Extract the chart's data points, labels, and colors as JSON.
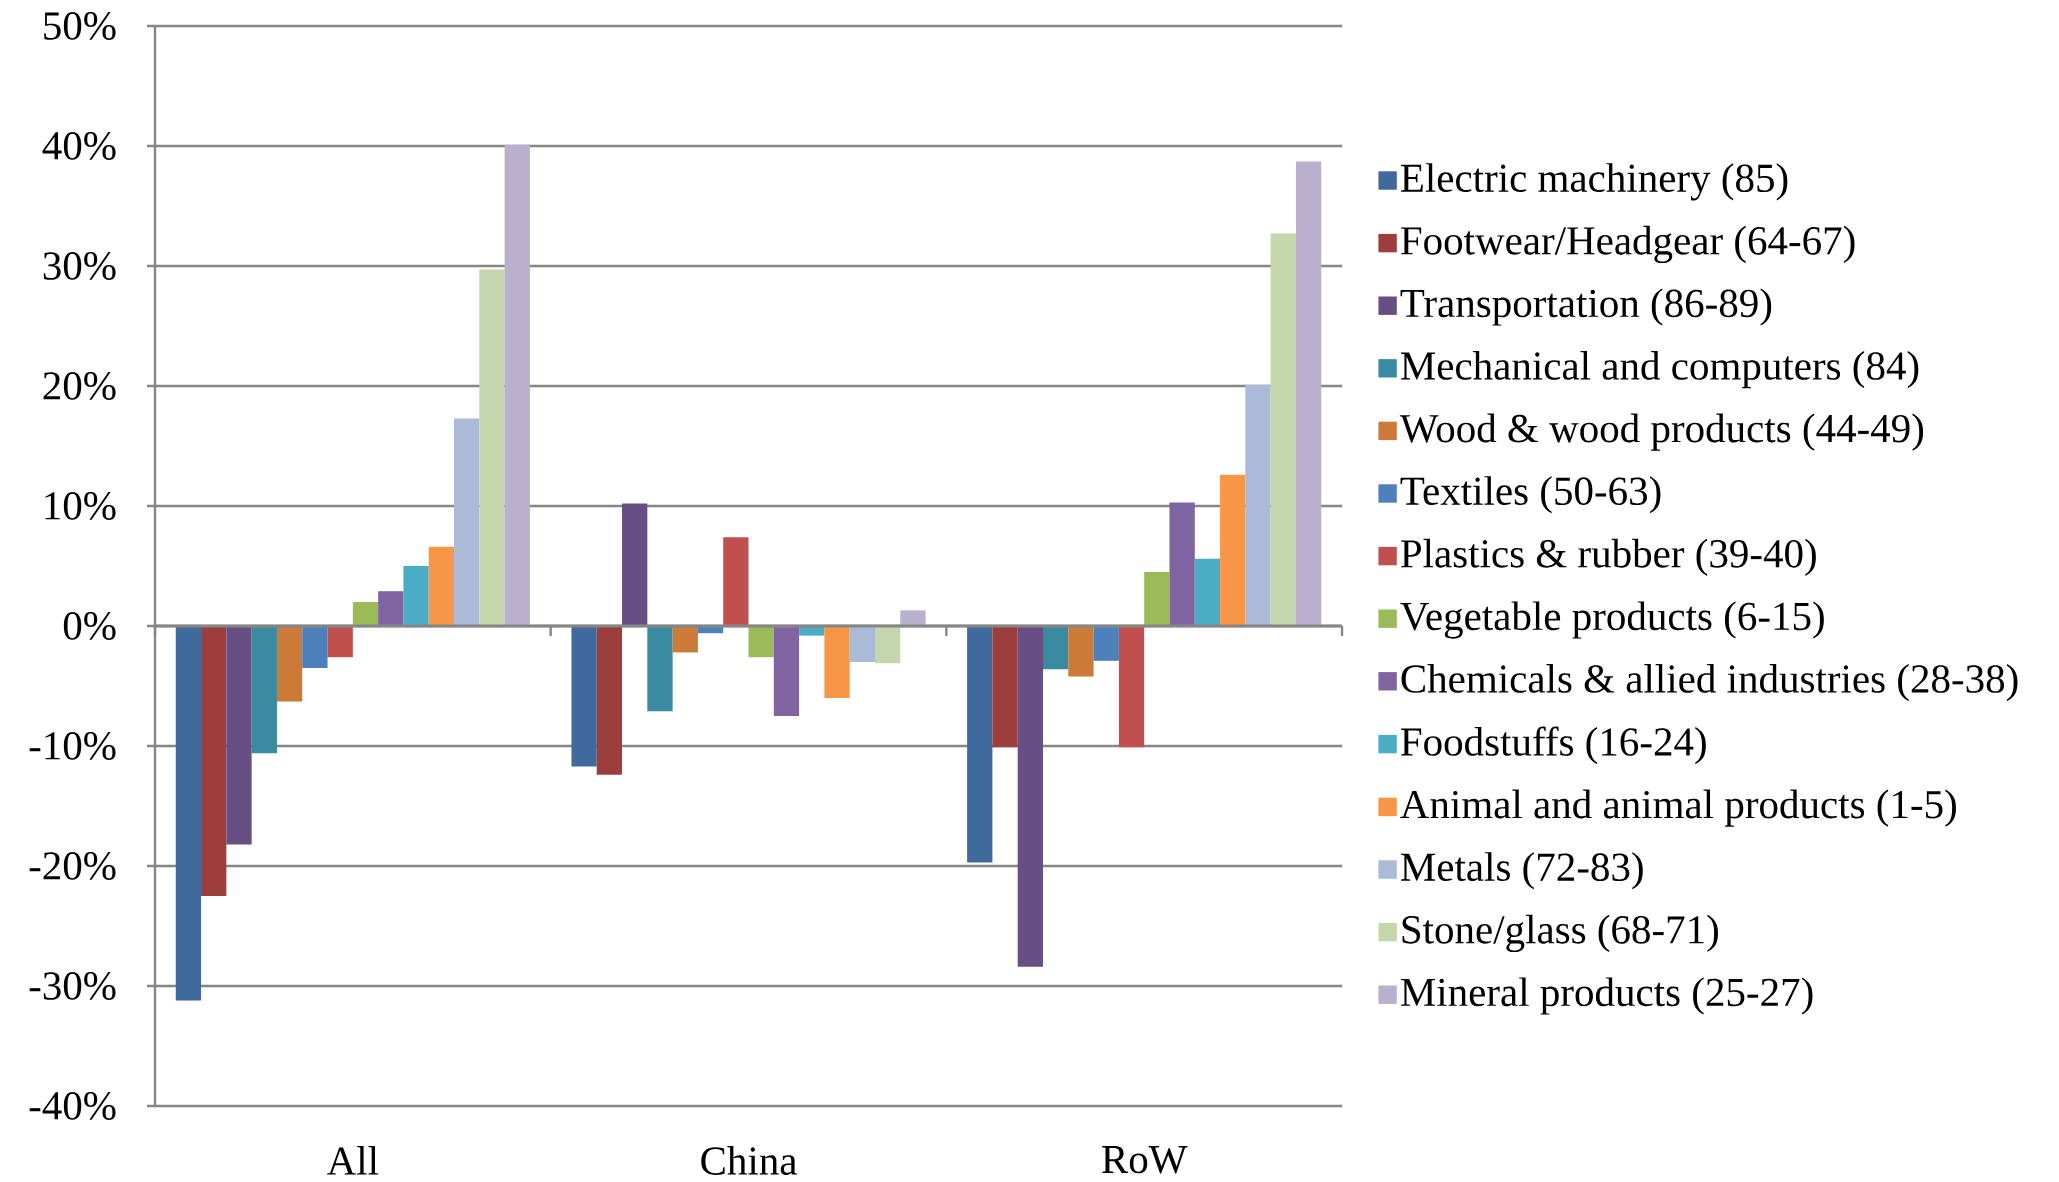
{
  "chart_data": {
    "type": "bar",
    "categories": [
      "All",
      "China",
      "RoW"
    ],
    "series": [
      {
        "name": "Electric machinery (85)",
        "color": "#3f6a9b",
        "values": [
          -31.2,
          -11.7,
          -19.7
        ]
      },
      {
        "name": "Footwear/Headgear (64-67)",
        "color": "#9c3e3c",
        "values": [
          -22.5,
          -12.4,
          -10.1
        ]
      },
      {
        "name": "Transportation (86-89)",
        "color": "#674f83",
        "values": [
          -18.2,
          10.2,
          -28.4
        ]
      },
      {
        "name": "Mechanical and computers (84)",
        "color": "#3a8ba2",
        "values": [
          -10.6,
          -7.1,
          -3.6
        ]
      },
      {
        "name": "Wood & wood products (44-49)",
        "color": "#cb7a37",
        "values": [
          -6.3,
          -2.2,
          -4.2
        ]
      },
      {
        "name": "Textiles (50-63)",
        "color": "#4e80bc",
        "values": [
          -3.5,
          -0.6,
          -2.9
        ]
      },
      {
        "name": "Plastics & rubber (39-40)",
        "color": "#bf504d",
        "values": [
          -2.6,
          7.4,
          -10.1
        ]
      },
      {
        "name": "Vegetable products (6-15)",
        "color": "#9bbb59",
        "values": [
          2.0,
          -2.6,
          4.5
        ]
      },
      {
        "name": "Chemicals & allied industries (28-38)",
        "color": "#8064a2",
        "values": [
          2.9,
          -7.5,
          10.3
        ]
      },
      {
        "name": "Foodstuffs (16-24)",
        "color": "#4bacc6",
        "values": [
          5.0,
          -0.8,
          5.6
        ]
      },
      {
        "name": "Animal and animal products (1-5)",
        "color": "#f79646",
        "values": [
          6.6,
          -6.0,
          12.6
        ]
      },
      {
        "name": "Metals (72-83)",
        "color": "#aabad7",
        "values": [
          17.3,
          -3.0,
          20.1
        ]
      },
      {
        "name": "Stone/glass (68-71)",
        "color": "#c6d6ac",
        "values": [
          29.7,
          -3.1,
          32.7
        ]
      },
      {
        "name": "Mineral products (25-27)",
        "color": "#b9b0cd",
        "values": [
          40.1,
          1.3,
          38.7
        ]
      }
    ],
    "ylim": [
      -40,
      50
    ],
    "yticks": [
      {
        "value": -40,
        "label": "-40%"
      },
      {
        "value": -30,
        "label": "-30%"
      },
      {
        "value": -20,
        "label": "-20%"
      },
      {
        "value": -10,
        "label": "-10%"
      },
      {
        "value": 0,
        "label": "0%"
      },
      {
        "value": 10,
        "label": "10%"
      },
      {
        "value": 20,
        "label": "20%"
      },
      {
        "value": 30,
        "label": "30%"
      },
      {
        "value": 40,
        "label": "40%"
      },
      {
        "value": 50,
        "label": "50%"
      }
    ],
    "grid": "y",
    "legend": "right"
  }
}
